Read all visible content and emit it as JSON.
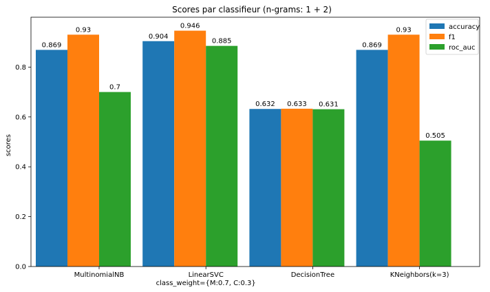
{
  "chart_data": {
    "type": "bar",
    "title": "Scores par classifieur (n-grams: 1 + 2)",
    "xlabel": "",
    "ylabel": "scores",
    "ylim": [
      0,
      1.0
    ],
    "yticks": [
      0.0,
      0.2,
      0.4,
      0.6,
      0.8
    ],
    "ytick_labels": [
      "0.0",
      "0.2",
      "0.4",
      "0.6",
      "0.8"
    ],
    "grid": false,
    "legend_position": "top-right",
    "categories": [
      [
        "MultinomialNB"
      ],
      [
        "LinearSVC",
        "class_weight={M:0.7, C:0.3}"
      ],
      [
        "DecisionTree"
      ],
      [
        "KNeighbors(k=3)"
      ]
    ],
    "series": [
      {
        "name": "accuracy",
        "color": "#1f77b4",
        "values": [
          0.869,
          0.904,
          0.632,
          0.869
        ],
        "labels": [
          "0.869",
          "0.904",
          "0.632",
          "0.869"
        ]
      },
      {
        "name": "f1",
        "color": "#ff7f0e",
        "values": [
          0.93,
          0.946,
          0.633,
          0.93
        ],
        "labels": [
          "0.93",
          "0.946",
          "0.633",
          "0.93"
        ]
      },
      {
        "name": "roc_auc",
        "color": "#2ca02c",
        "values": [
          0.7,
          0.885,
          0.631,
          0.505
        ],
        "labels": [
          "0.7",
          "0.885",
          "0.631",
          "0.505"
        ]
      }
    ]
  }
}
